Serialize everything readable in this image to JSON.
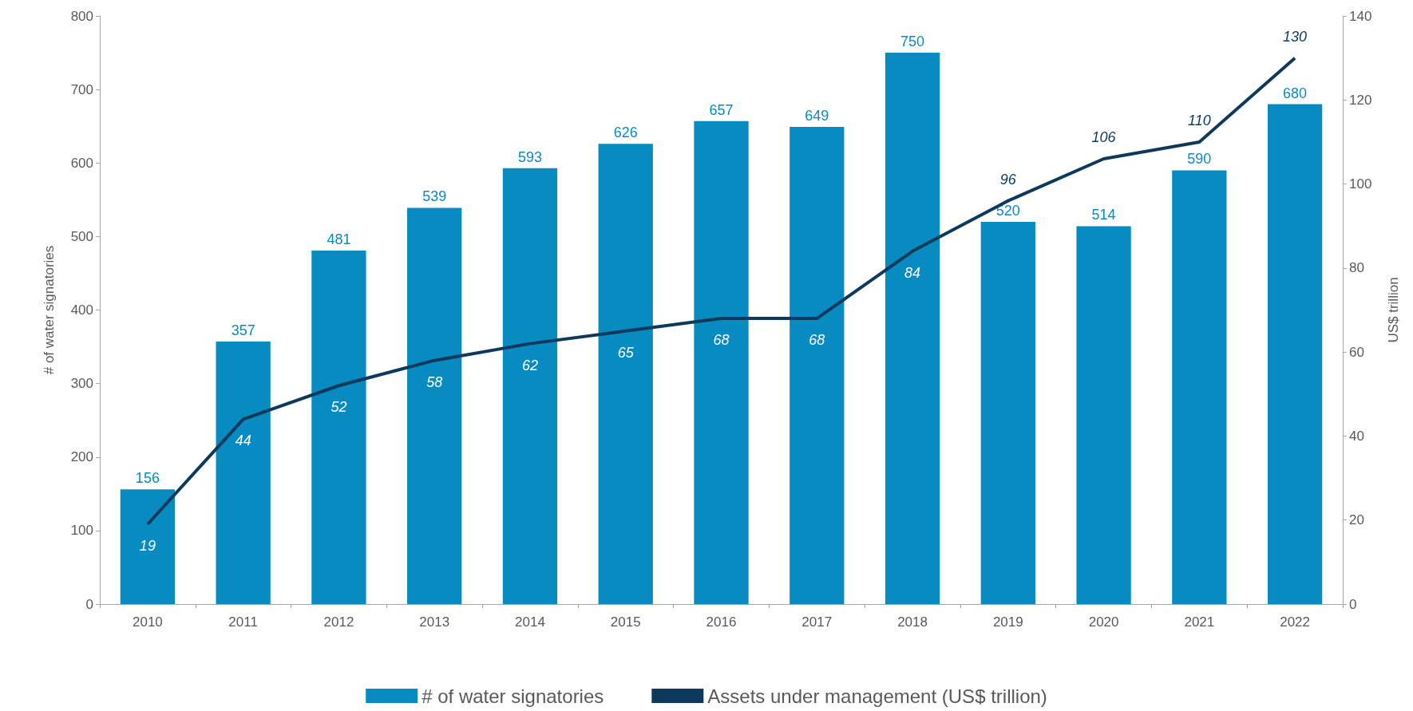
{
  "chart_data": {
    "type": "bar",
    "categories": [
      "2010",
      "2011",
      "2012",
      "2013",
      "2014",
      "2015",
      "2016",
      "2017",
      "2018",
      "2019",
      "2020",
      "2021",
      "2022"
    ],
    "ylabel": "# of water signatories",
    "y2label": "US$ trillion",
    "series": [
      {
        "name": "# of water signatories",
        "color": "#078bc0",
        "values": [
          156,
          357,
          481,
          539,
          593,
          626,
          657,
          649,
          750,
          520,
          514,
          590,
          680
        ]
      },
      {
        "name": "Assets under management (US$ trillion)",
        "type": "line",
        "axis": "y2",
        "color": "#0d3a5c",
        "values": [
          19,
          44,
          52,
          58,
          62,
          65,
          68,
          68,
          84,
          96,
          106,
          110,
          130
        ]
      }
    ],
    "ylim": [
      0,
      800
    ],
    "yticks": [
      0,
      100,
      200,
      300,
      400,
      500,
      600,
      700,
      800
    ],
    "y2lim": [
      0,
      140
    ],
    "y2ticks": [
      0,
      20,
      40,
      60,
      80,
      100,
      120,
      140
    ],
    "data_labels": true,
    "grid": false,
    "legend": "bottom",
    "marker": "none",
    "line_style": "solid"
  }
}
